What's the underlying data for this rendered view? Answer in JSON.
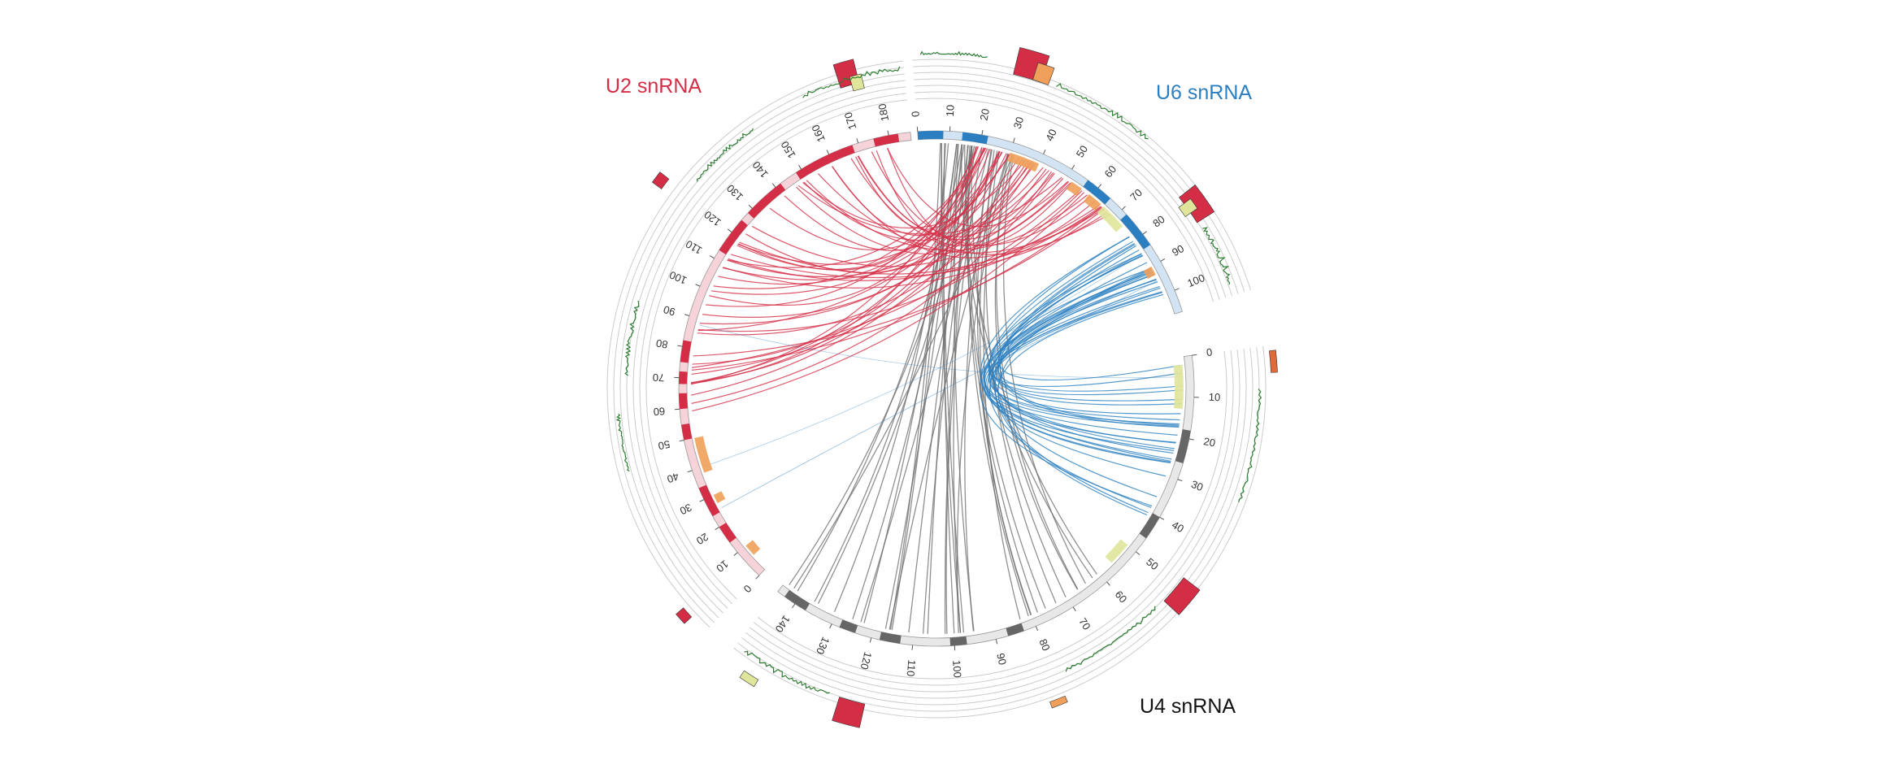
{
  "colors": {
    "u2": "#d42e47",
    "u2_light": "#f5d3d8",
    "u6": "#2b7fc0",
    "u6_light": "#d2e4f3",
    "u4": "#666666",
    "u4_light": "#e8e8e8",
    "orange": "#f0a05a",
    "yellow_green": "#dfe59a",
    "trace_green": "#2e7d32",
    "ring_line": "#cccccc"
  },
  "labels": {
    "u2": "U2 snRNA",
    "u6": "U6 snRNA",
    "u4": "U4 snRNA"
  },
  "segments": [
    {
      "id": "u2",
      "length": 187,
      "ticks": [
        0,
        10,
        20,
        30,
        40,
        50,
        60,
        70,
        80,
        90,
        100,
        110,
        120,
        130,
        140,
        150,
        160,
        170,
        180
      ],
      "dark_blocks": [
        [
          14,
          20
        ],
        [
          24,
          34
        ],
        [
          50,
          55
        ],
        [
          60,
          65
        ],
        [
          68,
          72
        ],
        [
          75,
          82
        ],
        [
          113,
          125
        ],
        [
          128,
          142
        ],
        [
          148,
          168
        ],
        [
          175,
          183
        ]
      ],
      "highlights": [
        [
          6,
          10,
          "orange"
        ],
        [
          27,
          30,
          "orange"
        ],
        [
          38,
          50,
          "orange"
        ]
      ]
    },
    {
      "id": "u6",
      "length": 107,
      "ticks": [
        0,
        10,
        20,
        30,
        40,
        50,
        60,
        70,
        80,
        90,
        100
      ],
      "dark_blocks": [
        [
          0,
          8
        ],
        [
          14,
          22
        ],
        [
          56,
          65
        ],
        [
          72,
          84
        ]
      ],
      "highlights": [
        [
          30,
          40,
          "orange"
        ],
        [
          52,
          56,
          "orange"
        ],
        [
          59,
          64,
          "orange"
        ],
        [
          65,
          74,
          "yellow_green"
        ],
        [
          90,
          93,
          "orange"
        ]
      ]
    },
    {
      "id": "u4",
      "length": 145,
      "ticks": [
        0,
        10,
        20,
        30,
        40,
        50,
        60,
        70,
        80,
        90,
        100,
        110,
        120,
        130,
        140
      ],
      "dark_blocks": [
        [
          18,
          26
        ],
        [
          40,
          46
        ],
        [
          83,
          87
        ],
        [
          97,
          101
        ],
        [
          113,
          118
        ],
        [
          124,
          128
        ],
        [
          137,
          143
        ]
      ],
      "highlights": [
        [
          2,
          13,
          "yellow_green"
        ],
        [
          50,
          56,
          "yellow_green"
        ]
      ]
    }
  ],
  "links": {
    "u2_to_u6_count": 52,
    "u6_to_u4_count": 28,
    "u4_to_u6_count": 38
  }
}
